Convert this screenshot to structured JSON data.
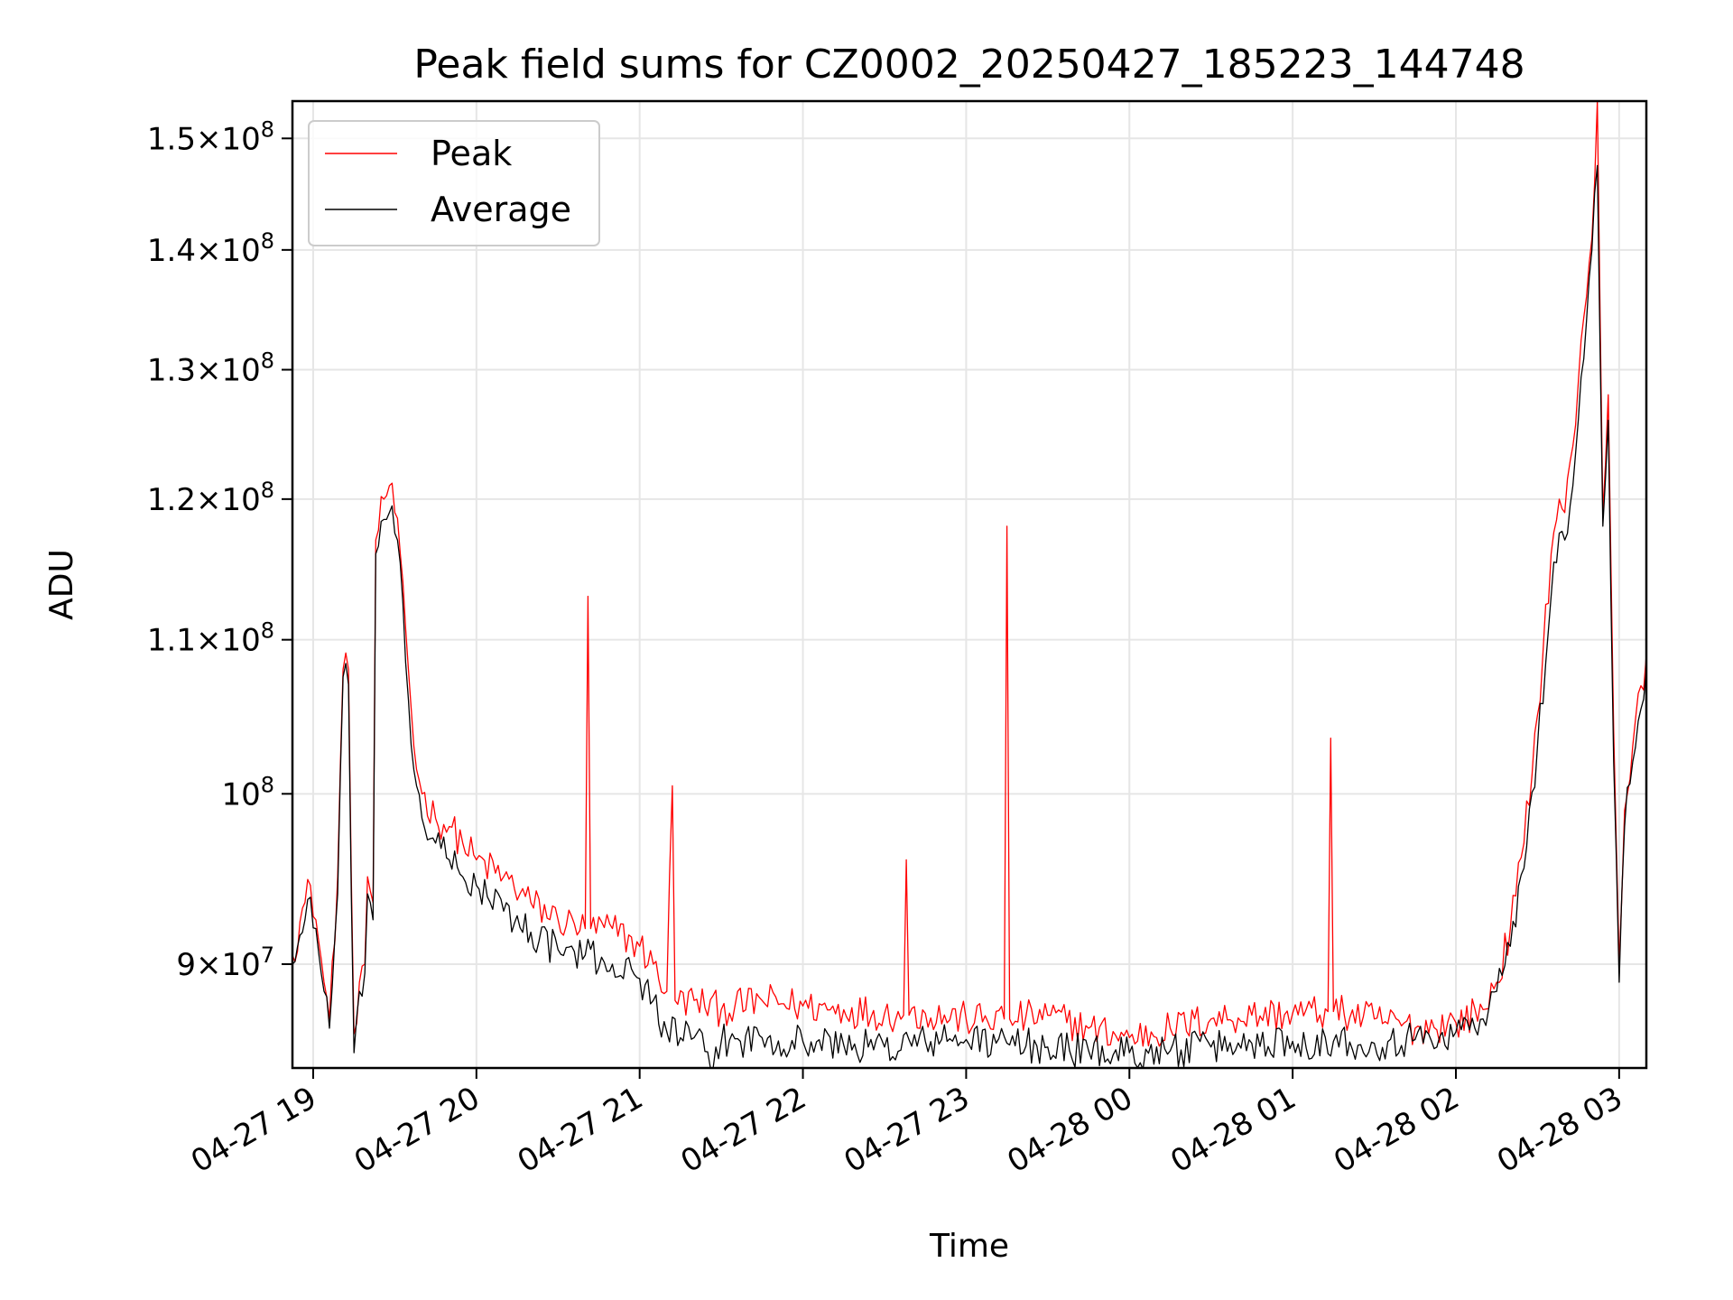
{
  "chart_data": {
    "type": "line",
    "title": "Peak field sums for CZ0002_20250427_185223_144748",
    "xlabel": "Time",
    "ylabel": "ADU",
    "y_scale": "log",
    "xlim": [
      "2025-04-27 18:52:23",
      "2025-04-28 03:10:00"
    ],
    "ylim": [
      84400000,
      153500000
    ],
    "grid": true,
    "legend_position": "upper-left",
    "x_ticks": [
      "2025-04-27 19:00",
      "2025-04-27 20:00",
      "2025-04-27 21:00",
      "2025-04-27 22:00",
      "2025-04-27 23:00",
      "2025-04-28 00:00",
      "2025-04-28 01:00",
      "2025-04-28 02:00",
      "2025-04-28 03:00"
    ],
    "x_tick_labels": [
      "04-27 19",
      "04-27 20",
      "04-27 21",
      "04-27 22",
      "04-27 23",
      "04-28 00",
      "04-28 01",
      "04-28 02",
      "04-28 03"
    ],
    "y_ticks": [
      90000000,
      100000000,
      110000000,
      120000000,
      130000000,
      140000000,
      150000000
    ],
    "y_tick_labels": [
      {
        "mantissa": "9",
        "exponent": "7"
      },
      {
        "mantissa": "",
        "exponent": "8"
      },
      {
        "mantissa": "1.1",
        "exponent": "8"
      },
      {
        "mantissa": "1.2",
        "exponent": "8"
      },
      {
        "mantissa": "1.3",
        "exponent": "8"
      },
      {
        "mantissa": "1.4",
        "exponent": "8"
      },
      {
        "mantissa": "1.5",
        "exponent": "8"
      }
    ],
    "series": [
      {
        "name": "Peak",
        "color": "#ff0000",
        "x": [
          "2025-04-27 18:52:23",
          "2025-04-27 18:57",
          "2025-04-27 18:59",
          "2025-04-27 19:01",
          "2025-04-27 19:04",
          "2025-04-27 19:06",
          "2025-04-27 19:09",
          "2025-04-27 19:11",
          "2025-04-27 19:13",
          "2025-04-27 19:14",
          "2025-04-27 19:15",
          "2025-04-27 19:17",
          "2025-04-27 19:19",
          "2025-04-27 19:20",
          "2025-04-27 19:22",
          "2025-04-27 19:23",
          "2025-04-27 19:26",
          "2025-04-27 19:28",
          "2025-04-27 19:30",
          "2025-04-27 19:33",
          "2025-04-27 19:35",
          "2025-04-27 19:37",
          "2025-04-27 19:40",
          "2025-04-27 19:45",
          "2025-04-27 19:50",
          "2025-04-27 19:55",
          "2025-04-27 20:00",
          "2025-04-27 20:10",
          "2025-04-27 20:20",
          "2025-04-27 20:30",
          "2025-04-27 20:40",
          "2025-04-27 20:41",
          "2025-04-27 20:42",
          "2025-04-27 20:50",
          "2025-04-27 21:00",
          "2025-04-27 21:05",
          "2025-04-27 21:10",
          "2025-04-27 21:12",
          "2025-04-27 21:13",
          "2025-04-27 21:20",
          "2025-04-27 21:30",
          "2025-04-27 21:45",
          "2025-04-27 22:00",
          "2025-04-27 22:15",
          "2025-04-27 22:30",
          "2025-04-27 22:37",
          "2025-04-27 22:38",
          "2025-04-27 22:39",
          "2025-04-27 22:45",
          "2025-04-27 23:00",
          "2025-04-27 23:14",
          "2025-04-27 23:15",
          "2025-04-27 23:16",
          "2025-04-27 23:30",
          "2025-04-27 23:45",
          "2025-04-28 00:00",
          "2025-04-28 00:15",
          "2025-04-28 00:30",
          "2025-04-28 00:45",
          "2025-04-28 01:00",
          "2025-04-28 01:13",
          "2025-04-28 01:14",
          "2025-04-28 01:15",
          "2025-04-28 01:30",
          "2025-04-28 01:45",
          "2025-04-28 02:00",
          "2025-04-28 02:10",
          "2025-04-28 02:15",
          "2025-04-28 02:20",
          "2025-04-28 02:25",
          "2025-04-28 02:30",
          "2025-04-28 02:35",
          "2025-04-28 02:38",
          "2025-04-28 02:40",
          "2025-04-28 02:43",
          "2025-04-28 02:45",
          "2025-04-28 02:48",
          "2025-04-28 02:50",
          "2025-04-28 02:51",
          "2025-04-28 02:52",
          "2025-04-28 02:54",
          "2025-04-28 02:56",
          "2025-04-28 02:58",
          "2025-04-28 03:00",
          "2025-04-28 03:02",
          "2025-04-28 03:05",
          "2025-04-28 03:10"
        ],
        "values": [
          90500000,
          93500000,
          94500000,
          92500000,
          89000000,
          87000000,
          95000000,
          108000000,
          108000000,
          95000000,
          86200000,
          89000000,
          90000000,
          95000000,
          93500000,
          117000000,
          120000000,
          121000000,
          119000000,
          114000000,
          108000000,
          103000000,
          100000000,
          98500000,
          98000000,
          97000000,
          96000000,
          95000000,
          93500000,
          92500000,
          92000000,
          113000000,
          92000000,
          92000000,
          91000000,
          90000000,
          88500000,
          100500000,
          88000000,
          88000000,
          87500000,
          88000000,
          87700000,
          87500000,
          87300000,
          87200000,
          96000000,
          87200000,
          87300000,
          87000000,
          87000000,
          118000000,
          87000000,
          87200000,
          86500000,
          86000000,
          86500000,
          87000000,
          87200000,
          87300000,
          87400000,
          103500000,
          87400000,
          87000000,
          86500000,
          86800000,
          87500000,
          89000000,
          92000000,
          97000000,
          105000000,
          116000000,
          120000000,
          119000000,
          124000000,
          129000000,
          136000000,
          141000000,
          146000000,
          153500000,
          119000000,
          128000000,
          104000000,
          90000000,
          99000000,
          103000000,
          109000000
        ]
      },
      {
        "name": "Average",
        "color": "#000000",
        "x": [
          "2025-04-27 18:52:23",
          "2025-04-27 18:57",
          "2025-04-27 18:59",
          "2025-04-27 19:01",
          "2025-04-27 19:04",
          "2025-04-27 19:06",
          "2025-04-27 19:09",
          "2025-04-27 19:11",
          "2025-04-27 19:13",
          "2025-04-27 19:14",
          "2025-04-27 19:15",
          "2025-04-27 19:17",
          "2025-04-27 19:19",
          "2025-04-27 19:20",
          "2025-04-27 19:22",
          "2025-04-27 19:23",
          "2025-04-27 19:26",
          "2025-04-27 19:28",
          "2025-04-27 19:30",
          "2025-04-27 19:33",
          "2025-04-27 19:35",
          "2025-04-27 19:37",
          "2025-04-27 19:40",
          "2025-04-27 19:45",
          "2025-04-27 19:50",
          "2025-04-27 19:55",
          "2025-04-27 20:00",
          "2025-04-27 20:10",
          "2025-04-27 20:20",
          "2025-04-27 20:30",
          "2025-04-27 20:40",
          "2025-04-27 20:50",
          "2025-04-27 21:00",
          "2025-04-27 21:05",
          "2025-04-27 21:10",
          "2025-04-27 21:20",
          "2025-04-27 21:27",
          "2025-04-27 21:28",
          "2025-04-27 21:30",
          "2025-04-27 21:45",
          "2025-04-27 22:00",
          "2025-04-27 22:15",
          "2025-04-27 22:30",
          "2025-04-27 22:45",
          "2025-04-27 23:00",
          "2025-04-27 23:15",
          "2025-04-27 23:30",
          "2025-04-27 23:45",
          "2025-04-28 00:00",
          "2025-04-28 00:15",
          "2025-04-28 00:30",
          "2025-04-28 00:45",
          "2025-04-28 01:00",
          "2025-04-28 01:15",
          "2025-04-28 01:30",
          "2025-04-28 01:45",
          "2025-04-28 02:00",
          "2025-04-28 02:10",
          "2025-04-28 02:15",
          "2025-04-28 02:20",
          "2025-04-28 02:25",
          "2025-04-28 02:30",
          "2025-04-28 02:35",
          "2025-04-28 02:38",
          "2025-04-28 02:40",
          "2025-04-28 02:43",
          "2025-04-28 02:45",
          "2025-04-28 02:48",
          "2025-04-28 02:50",
          "2025-04-28 02:51",
          "2025-04-28 02:52",
          "2025-04-28 02:54",
          "2025-04-28 02:56",
          "2025-04-28 02:58",
          "2025-04-28 03:00",
          "2025-04-28 03:02",
          "2025-04-28 03:05",
          "2025-04-28 03:10"
        ],
        "values": [
          90000000,
          92500000,
          93800000,
          92000000,
          88500000,
          86500000,
          94000000,
          107500000,
          107000000,
          94000000,
          85200000,
          88500000,
          89500000,
          94000000,
          92500000,
          116000000,
          118500000,
          119000000,
          117500000,
          112500000,
          106000000,
          101500000,
          98500000,
          97000000,
          96000000,
          95000000,
          94500000,
          93000000,
          91800000,
          90800000,
          90500000,
          90000000,
          89200000,
          88000000,
          86300000,
          86000000,
          84400000,
          85500000,
          85800000,
          86000000,
          85800000,
          85600000,
          85500000,
          85800000,
          85900000,
          85700000,
          85500000,
          85300000,
          85200000,
          85300000,
          85500000,
          85700000,
          85800000,
          85800000,
          85700000,
          85900000,
          86300000,
          87000000,
          88500000,
          91000000,
          95500000,
          103000000,
          113000000,
          117500000,
          117000000,
          121000000,
          126000000,
          134000000,
          140000000,
          145000000,
          147500000,
          118000000,
          126000000,
          102000000,
          89000000,
          98000000,
          102000000,
          108000000
        ]
      }
    ]
  }
}
